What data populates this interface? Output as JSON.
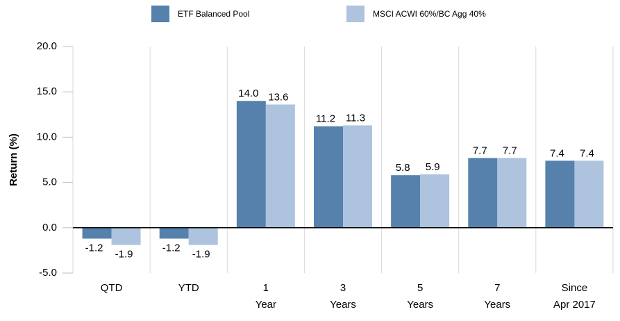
{
  "chart_data": {
    "type": "bar",
    "y_label": "Return (%)",
    "categories": [
      [
        "QTD"
      ],
      [
        "YTD"
      ],
      [
        "1",
        "Year"
      ],
      [
        "3",
        "Years"
      ],
      [
        "5",
        "Years"
      ],
      [
        "7",
        "Years"
      ],
      [
        "Since",
        "Apr 2017"
      ]
    ],
    "series": [
      {
        "name": "ETF Balanced Pool",
        "color": "#5581ac",
        "values": [
          -1.2,
          -1.2,
          14.0,
          11.2,
          5.8,
          7.7,
          7.4
        ],
        "value_labels": [
          "-1.2",
          "-1.2",
          "14.0",
          "11.2",
          "5.8",
          "7.7",
          "7.4"
        ]
      },
      {
        "name": "MSCI ACWI 60%/BC Agg 40%",
        "color": "#adc3de",
        "values": [
          -1.9,
          -1.9,
          13.6,
          11.3,
          5.9,
          7.7,
          7.4
        ],
        "value_labels": [
          "-1.9",
          "-1.9",
          "13.6",
          "11.3",
          "5.9",
          "7.7",
          "7.4"
        ]
      }
    ],
    "ylim": [
      -5,
      20
    ],
    "yticks": [
      {
        "value": -5,
        "label": "-5.0"
      },
      {
        "value": 0,
        "label": "0.0"
      },
      {
        "value": 5,
        "label": "5.0"
      },
      {
        "value": 10,
        "label": "10.0"
      },
      {
        "value": 15,
        "label": "15.0"
      },
      {
        "value": 20,
        "label": "20.0"
      }
    ],
    "legend": "top"
  }
}
